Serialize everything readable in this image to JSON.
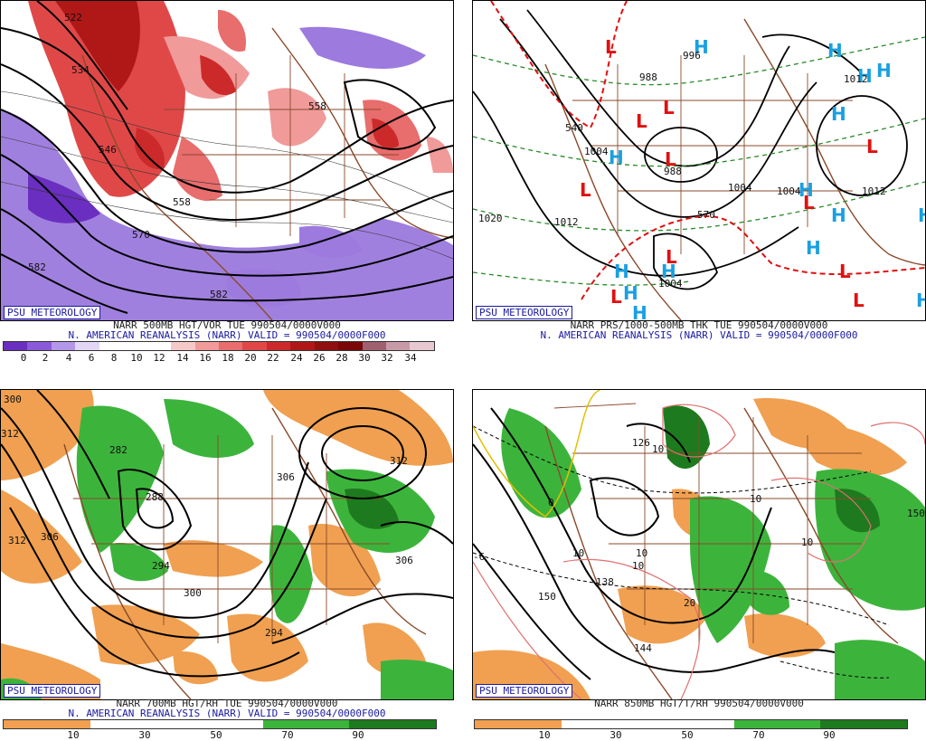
{
  "branding": "PSU METEOROLOGY",
  "panels": [
    {
      "id": "vorticity",
      "caption_line1": "NARR 500MB HGT/VOR TUE 990504/0000V000",
      "caption_line2": "N. AMERICAN REANALYSIS (NARR) VALID = 990504/0000F000",
      "colorbar": {
        "labels": [
          "0",
          "2",
          "4",
          "6",
          "8",
          "10",
          "12",
          "14",
          "16",
          "18",
          "20",
          "22",
          "24",
          "26",
          "28",
          "30",
          "32",
          "34"
        ],
        "colors": [
          "#6a2fc0",
          "#8a5ad8",
          "#b496ea",
          "#e2d6f6",
          "#ffffff",
          "#ffffff",
          "#ffffff",
          "#f6c8c8",
          "#f09a9a",
          "#e86d6d",
          "#e04848",
          "#cc2a2a",
          "#b01818",
          "#901010",
          "#7a0808",
          "#a06070",
          "#c89aa8",
          "#e8c8d0"
        ]
      },
      "contour_labels": [
        "522",
        "534",
        "546",
        "558",
        "558",
        "570",
        "582",
        "582"
      ]
    },
    {
      "id": "thickness",
      "caption_line1": "NARR PRS/1000-500MB THK TUE 990504/0000V000",
      "caption_line2": "N. AMERICAN REANALYSIS (NARR) VALID = 990504/0000F000",
      "contour_labels": [
        "996",
        "988",
        "1004",
        "988",
        "1004",
        "1012",
        "1020",
        "1012",
        "1012",
        "1004",
        "1004",
        "540",
        "570"
      ],
      "low_marker": "L",
      "high_marker": "H"
    },
    {
      "id": "rh700",
      "caption_line1": "NARR 700MB HGT/RH TUE 990504/0000V000",
      "caption_line2": "N. AMERICAN REANALYSIS (NARR) VALID = 990504/0000F000",
      "colorbar": {
        "labels": [
          "10",
          "30",
          "50",
          "70",
          "90"
        ],
        "colors": [
          "#f0a050",
          "#ffffff",
          "#ffffff",
          "#3cb43c",
          "#1e7a1e"
        ]
      },
      "contour_labels": [
        "294",
        "300",
        "282",
        "288",
        "294",
        "300",
        "306",
        "312",
        "312",
        "306",
        "312",
        "306"
      ]
    },
    {
      "id": "t850",
      "caption_line1": "NARR 850MB HGT/T/RH 990504/0000V000",
      "colorbar": {
        "labels": [
          "10",
          "30",
          "50",
          "70",
          "90"
        ],
        "colors": [
          "#f0a050",
          "#ffffff",
          "#ffffff",
          "#3cb43c",
          "#1e7a1e"
        ]
      },
      "contour_labels": [
        "126",
        "138",
        "150",
        "144",
        "150",
        "10",
        "0",
        "10",
        "10",
        "10",
        "20",
        "10",
        "10",
        "-6"
      ]
    }
  ]
}
